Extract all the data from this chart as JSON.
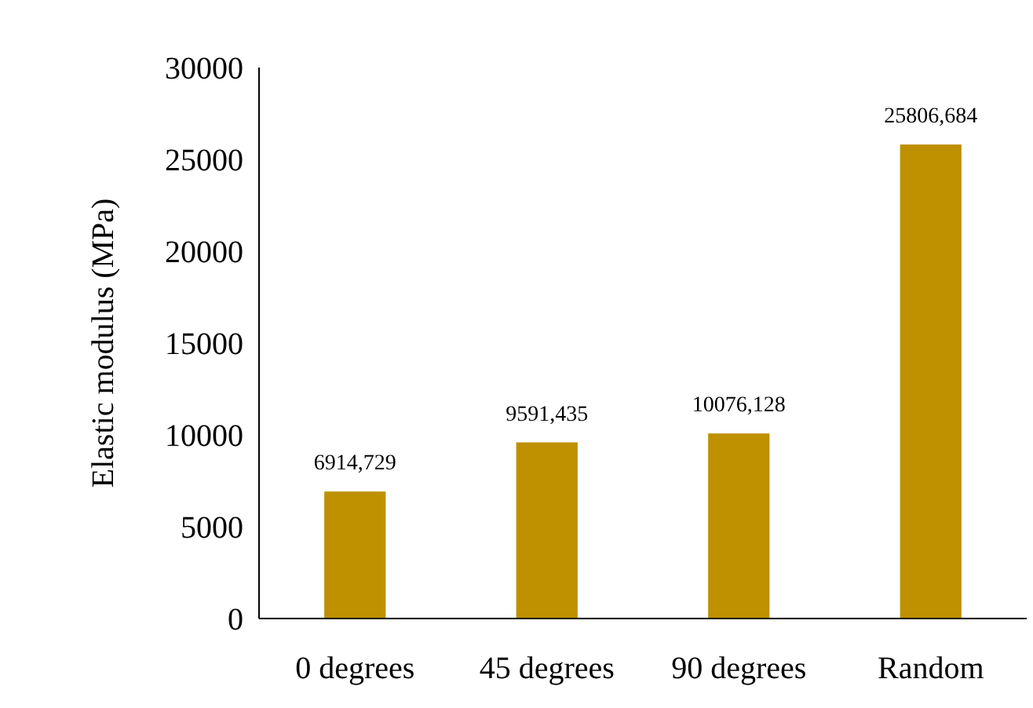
{
  "chart_data": {
    "type": "bar",
    "ylabel": "Elastic modulus (MPa)",
    "categories": [
      "0 degrees",
      "45 degrees",
      "90 degrees",
      "Random"
    ],
    "values": [
      6914.729,
      9591.435,
      10076.128,
      25806.684
    ],
    "value_labels": [
      "6914,729",
      "9591,435",
      "10076,128",
      "25806,684"
    ],
    "color": "#bf9000",
    "ylim": [
      0,
      30000
    ],
    "yticks": [
      0,
      5000,
      10000,
      15000,
      20000,
      25000,
      30000
    ],
    "grid": false
  }
}
